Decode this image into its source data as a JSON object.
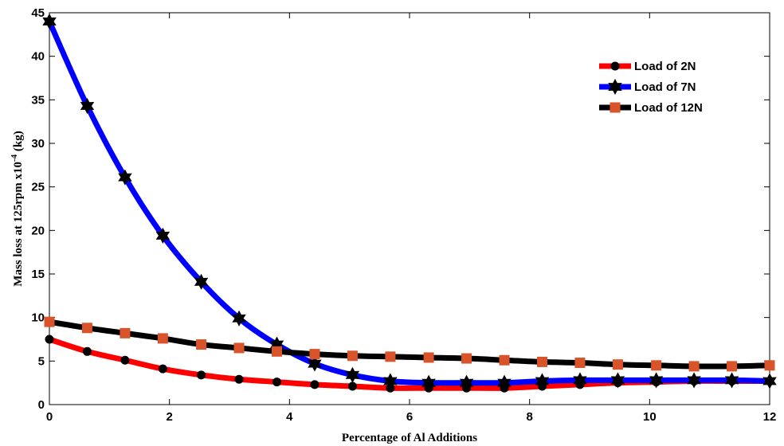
{
  "chart_data": {
    "type": "line",
    "title": "",
    "xlabel": "Percentage of Al Additions",
    "ylabel_prefix": "Mass loss at 125rpm x10",
    "ylabel_exponent": "-4",
    "ylabel_suffix": " (kg)",
    "xlim": [
      0,
      12
    ],
    "ylim": [
      0,
      45
    ],
    "xticks": [
      0,
      2,
      4,
      6,
      8,
      10,
      12
    ],
    "yticks": [
      0,
      5,
      10,
      15,
      20,
      25,
      30,
      35,
      40,
      45
    ],
    "grid": false,
    "legend_position": "top-right",
    "x": [
      0,
      0.63,
      1.26,
      1.89,
      2.53,
      3.16,
      3.79,
      4.42,
      5.05,
      5.68,
      6.32,
      6.95,
      7.58,
      8.21,
      8.84,
      9.47,
      10.11,
      10.74,
      11.37,
      12
    ],
    "series": [
      {
        "name": "Load of 2N",
        "color": "#ff0000",
        "marker": "circle",
        "marker_color": "#000000",
        "values": [
          7.5,
          6.1,
          5.1,
          4.1,
          3.4,
          2.9,
          2.6,
          2.3,
          2.1,
          1.9,
          1.9,
          1.9,
          1.9,
          2.1,
          2.3,
          2.5,
          2.6,
          2.7,
          2.7,
          2.7
        ]
      },
      {
        "name": "Load of 7N",
        "color": "#0000ff",
        "marker": "hexagram",
        "marker_color": "#000000",
        "values": [
          44.0,
          34.3,
          26.1,
          19.4,
          14.1,
          9.9,
          6.9,
          4.7,
          3.4,
          2.7,
          2.5,
          2.5,
          2.5,
          2.7,
          2.8,
          2.8,
          2.8,
          2.8,
          2.8,
          2.7
        ]
      },
      {
        "name": "Load of 12N",
        "color": "#000000",
        "marker": "square",
        "marker_color": "#d9532b",
        "values": [
          9.5,
          8.8,
          8.2,
          7.6,
          6.9,
          6.5,
          6.1,
          5.8,
          5.6,
          5.5,
          5.4,
          5.3,
          5.1,
          4.9,
          4.8,
          4.6,
          4.5,
          4.4,
          4.4,
          4.5
        ]
      }
    ]
  }
}
